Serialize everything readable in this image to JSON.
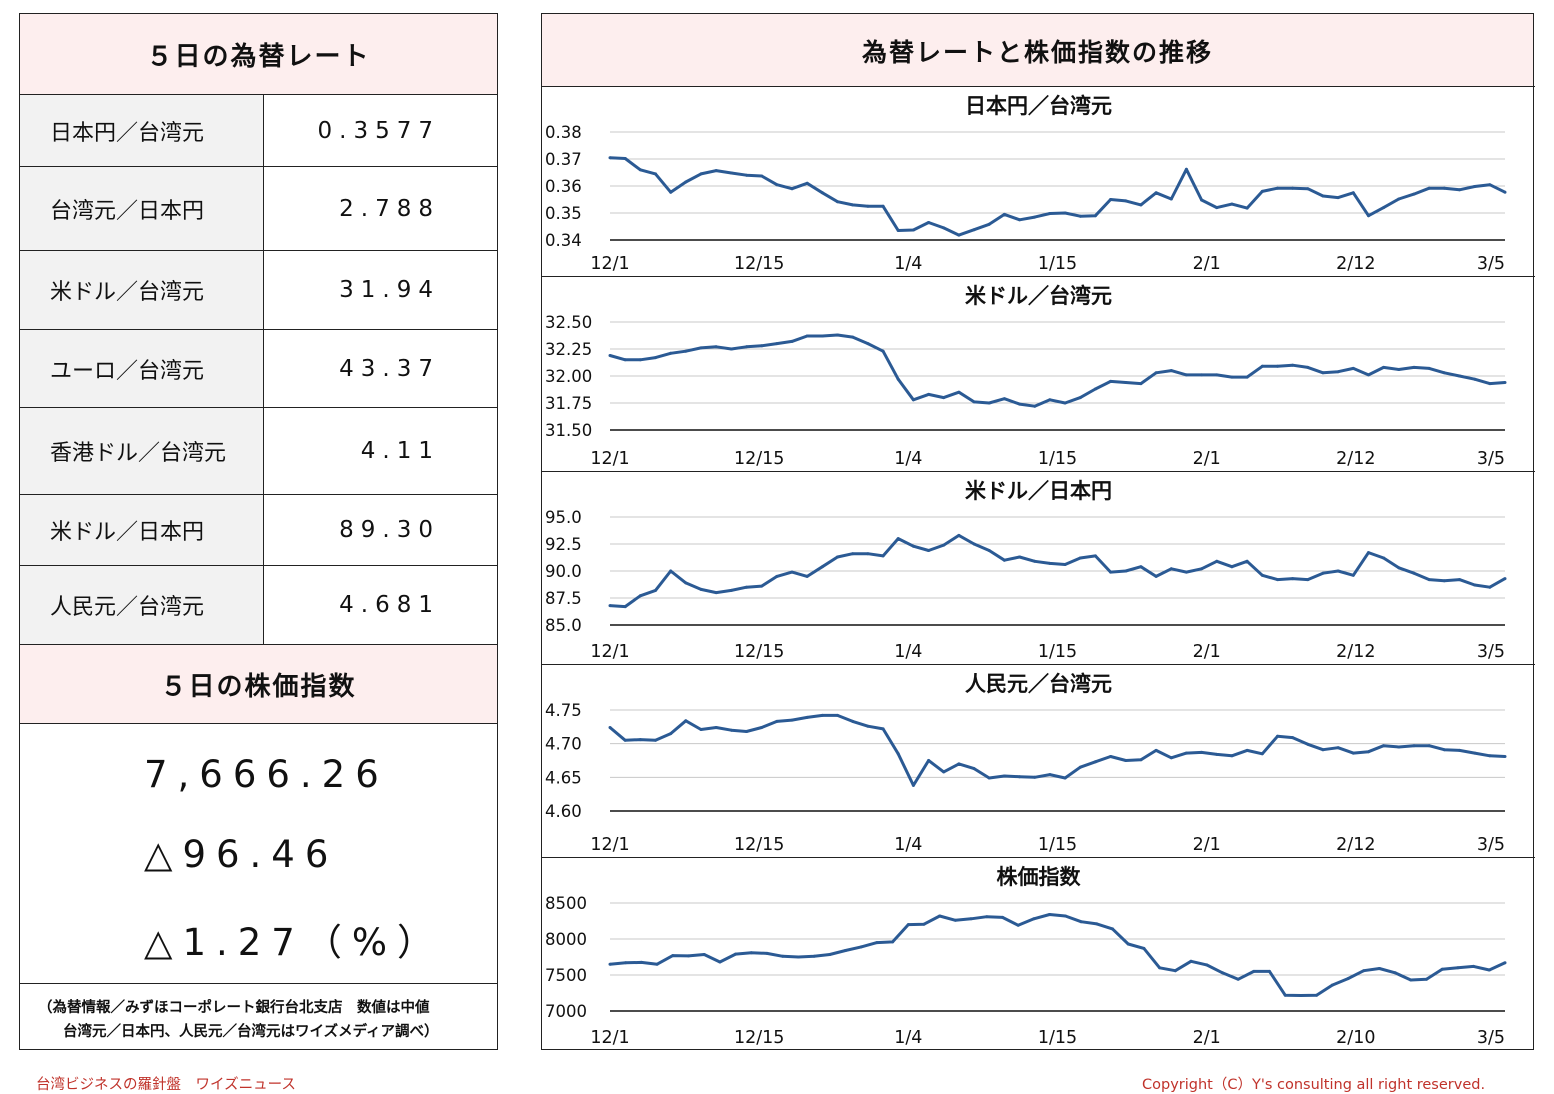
{
  "rates": {
    "title": "５日の為替レート",
    "rows": [
      {
        "name": "日本円／台湾元",
        "value": "0.3577"
      },
      {
        "name": "台湾元／日本円",
        "value": "2.788"
      },
      {
        "name": "米ドル／台湾元",
        "value": "31.94"
      },
      {
        "name": "ユーロ／台湾元",
        "value": "43.37"
      },
      {
        "name": "香港ドル／台湾元",
        "value": "4.11"
      },
      {
        "name": "米ドル／日本円",
        "value": "89.30"
      },
      {
        "name": "人民元／台湾元",
        "value": "4.681"
      }
    ]
  },
  "stock": {
    "title": "５日の株価指数",
    "index": "7,666.26",
    "change": "△96.46",
    "change_pct": "△1.27（%）"
  },
  "note": {
    "line1": "（為替情報／みずほコーポレート銀行台北支店　数値は中値",
    "line2": "台湾元／日本円、人民元／台湾元はワイズメディア調べ）"
  },
  "footer": {
    "left": "台湾ビジネスの羅針盤　ワイズニュース",
    "right": "Copyright（C）Y's consulting all right reserved."
  },
  "charts_title": "為替レートと株価指数の推移",
  "colors": {
    "line": "#2b5a94",
    "header_bg": "#fdeeee",
    "label_bg": "#f2f2f2",
    "footer": "#c0332b"
  },
  "chart_data": [
    {
      "type": "line",
      "title": "日本円／台湾元",
      "yticks": [
        "0.38",
        "0.37",
        "0.36",
        "0.35",
        "0.34"
      ],
      "ylim": [
        0.34,
        0.38
      ],
      "xticks": [
        "12/1",
        "12/15",
        "1/4",
        "1/15",
        "2/1",
        "2/12",
        "3/5"
      ],
      "grid": true,
      "values": [
        0.3705,
        0.3702,
        0.366,
        0.3645,
        0.3577,
        0.3615,
        0.3645,
        0.3657,
        0.3648,
        0.364,
        0.3637,
        0.3605,
        0.359,
        0.361,
        0.3575,
        0.3542,
        0.353,
        0.3525,
        0.3525,
        0.3435,
        0.3437,
        0.3465,
        0.3445,
        0.3418,
        0.3438,
        0.3458,
        0.3495,
        0.3475,
        0.3485,
        0.3498,
        0.35,
        0.3488,
        0.349,
        0.355,
        0.3545,
        0.353,
        0.3575,
        0.3552,
        0.3662,
        0.3548,
        0.352,
        0.3533,
        0.3518,
        0.358,
        0.3592,
        0.3592,
        0.359,
        0.3563,
        0.3557,
        0.3575,
        0.349,
        0.352,
        0.3552,
        0.357,
        0.3592,
        0.3592,
        0.3586,
        0.3598,
        0.3605,
        0.3577
      ]
    },
    {
      "type": "line",
      "title": "米ドル／台湾元",
      "yticks": [
        "32.50",
        "32.25",
        "32.00",
        "31.75",
        "31.50"
      ],
      "ylim": [
        31.5,
        32.5
      ],
      "xticks": [
        "12/1",
        "12/15",
        "1/4",
        "1/15",
        "2/1",
        "2/12",
        "3/5"
      ],
      "grid": true,
      "values": [
        32.19,
        32.15,
        32.15,
        32.17,
        32.21,
        32.23,
        32.26,
        32.27,
        32.25,
        32.27,
        32.28,
        32.3,
        32.32,
        32.37,
        32.37,
        32.38,
        32.36,
        32.3,
        32.23,
        31.97,
        31.78,
        31.83,
        31.8,
        31.85,
        31.76,
        31.75,
        31.79,
        31.74,
        31.72,
        31.78,
        31.75,
        31.8,
        31.88,
        31.95,
        31.94,
        31.93,
        32.03,
        32.05,
        32.01,
        32.01,
        32.01,
        31.99,
        31.99,
        32.09,
        32.09,
        32.1,
        32.08,
        32.03,
        32.04,
        32.07,
        32.01,
        32.08,
        32.06,
        32.08,
        32.07,
        32.03,
        32.0,
        31.97,
        31.93,
        31.94
      ]
    },
    {
      "type": "line",
      "title": "米ドル／日本円",
      "yticks": [
        "95.0",
        "92.5",
        "90.0",
        "87.5",
        "85.0"
      ],
      "ylim": [
        85.0,
        95.0
      ],
      "xticks": [
        "12/1",
        "12/15",
        "1/4",
        "1/15",
        "2/1",
        "2/12",
        "3/5"
      ],
      "grid": true,
      "values": [
        86.8,
        86.7,
        87.7,
        88.2,
        90.0,
        88.9,
        88.3,
        88.0,
        88.2,
        88.5,
        88.6,
        89.5,
        89.9,
        89.5,
        90.4,
        91.3,
        91.6,
        91.6,
        91.4,
        93.0,
        92.3,
        91.9,
        92.4,
        93.3,
        92.5,
        91.9,
        91.0,
        91.3,
        90.9,
        90.7,
        90.6,
        91.2,
        91.4,
        89.9,
        90.0,
        90.4,
        89.5,
        90.2,
        89.9,
        90.2,
        90.9,
        90.4,
        90.9,
        89.6,
        89.2,
        89.3,
        89.2,
        89.8,
        90.0,
        89.6,
        91.7,
        91.2,
        90.3,
        89.8,
        89.2,
        89.1,
        89.2,
        88.7,
        88.5,
        89.3
      ]
    },
    {
      "type": "line",
      "title": "人民元／台湾元",
      "yticks": [
        "4.75",
        "4.70",
        "4.65",
        "4.60"
      ],
      "ylim": [
        4.6,
        4.75
      ],
      "xticks": [
        "12/1",
        "12/15",
        "1/4",
        "1/15",
        "2/1",
        "2/12",
        "3/5"
      ],
      "grid": true,
      "values": [
        4.724,
        4.705,
        4.706,
        4.705,
        4.715,
        4.734,
        4.721,
        4.724,
        4.72,
        4.718,
        4.724,
        4.733,
        4.735,
        4.739,
        4.742,
        4.742,
        4.733,
        4.726,
        4.722,
        4.685,
        4.638,
        4.675,
        4.658,
        4.67,
        4.663,
        4.649,
        4.652,
        4.651,
        4.65,
        4.654,
        4.649,
        4.665,
        4.673,
        4.681,
        4.675,
        4.676,
        4.69,
        4.679,
        4.686,
        4.687,
        4.684,
        4.682,
        4.69,
        4.685,
        4.711,
        4.709,
        4.699,
        4.691,
        4.694,
        4.686,
        4.688,
        4.697,
        4.695,
        4.697,
        4.697,
        4.691,
        4.69,
        4.686,
        4.682,
        4.681
      ]
    },
    {
      "type": "line",
      "title": "株価指数",
      "yticks": [
        "8500",
        "8000",
        "7500",
        "7000"
      ],
      "ylim": [
        7000,
        8500
      ],
      "xticks": [
        "12/1",
        "12/15",
        "1/4",
        "1/15",
        "2/1",
        "2/10",
        "3/5"
      ],
      "grid": true,
      "values": [
        7650,
        7670,
        7675,
        7650,
        7770,
        7765,
        7785,
        7680,
        7790,
        7810,
        7800,
        7760,
        7750,
        7760,
        7785,
        7840,
        7890,
        7950,
        7960,
        8200,
        8205,
        8320,
        8260,
        8280,
        8310,
        8300,
        8190,
        8280,
        8340,
        8320,
        8240,
        8210,
        8140,
        7930,
        7870,
        7600,
        7560,
        7690,
        7640,
        7530,
        7440,
        7550,
        7550,
        7220,
        7215,
        7220,
        7360,
        7450,
        7560,
        7590,
        7530,
        7430,
        7440,
        7580,
        7600,
        7620,
        7570,
        7670
      ]
    }
  ]
}
